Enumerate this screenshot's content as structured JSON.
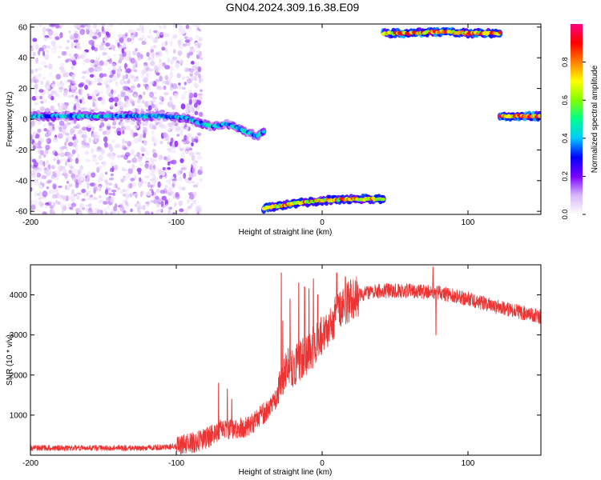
{
  "figure_title": "GN04.2024.309.16.38.E09",
  "chart_data": [
    {
      "type": "heatmap",
      "xlabel": "Height of straight line (km)",
      "ylabel": "Frequency (Hz)",
      "xlim": [
        -200,
        150
      ],
      "ylim": [
        -62,
        62
      ],
      "xticks": [
        -200,
        -100,
        0,
        100
      ],
      "yticks": [
        -60,
        -40,
        -20,
        0,
        20,
        40,
        60
      ],
      "colorbar": {
        "label": "Normalized spectral amplitude",
        "range": [
          0,
          1
        ],
        "ticks": [
          "0.0",
          "0.2",
          "0.4",
          "0.6",
          "0.8"
        ],
        "tick_values": [
          0,
          0.2,
          0.4,
          0.6,
          0.8
        ],
        "colors": [
          "#ffffff",
          "#d8b8f8",
          "#7a00ff",
          "#0000ff",
          "#00c8ff",
          "#00ff90",
          "#80ff00",
          "#ffff00",
          "#ff8000",
          "#ff0000",
          "#ff0080"
        ]
      },
      "features": [
        {
          "kind": "noise",
          "x_range": [
            -200,
            -95
          ],
          "y_range": [
            -62,
            62
          ],
          "amplitude": 0.15
        },
        {
          "kind": "band",
          "x": [
            -200,
            -150,
            -110,
            -95,
            -85,
            -75,
            -65,
            -55,
            -45,
            -40
          ],
          "y": [
            2,
            2,
            2,
            1,
            -2,
            -5,
            -3,
            -7,
            -11,
            -8
          ],
          "amplitude": 0.45
        },
        {
          "kind": "band",
          "x": [
            -40,
            -20,
            0,
            20,
            42
          ],
          "y": [
            -58,
            -55,
            -53,
            -52,
            -52
          ],
          "amplitude": 0.85
        },
        {
          "kind": "band",
          "x": [
            42,
            60,
            80,
            100,
            122
          ],
          "y": [
            56,
            56,
            57,
            56,
            56
          ],
          "amplitude": 0.9
        },
        {
          "kind": "band",
          "x": [
            122,
            150
          ],
          "y": [
            2,
            2
          ],
          "amplitude": 0.95
        }
      ]
    },
    {
      "type": "line",
      "xlabel": "Height of straight line (km)",
      "ylabel": "SNR (10 * v/v)",
      "xlim": [
        -200,
        150
      ],
      "ylim": [
        0,
        4750
      ],
      "xticks": [
        -200,
        -100,
        0,
        100
      ],
      "yticks": [
        1000,
        2000,
        3000,
        4000
      ],
      "color": "#ee3333",
      "envelope": {
        "x": [
          -200,
          -120,
          -100,
          -95,
          -85,
          -75,
          -70,
          -60,
          -50,
          -42,
          -38,
          -30,
          -25,
          -20,
          -10,
          0,
          10,
          20,
          30,
          40,
          60,
          80,
          100,
          120,
          150
        ],
        "y": [
          180,
          180,
          220,
          260,
          340,
          500,
          650,
          650,
          720,
          1000,
          1100,
          1500,
          2200,
          2200,
          2500,
          3000,
          3500,
          3900,
          4050,
          4100,
          4100,
          4050,
          3900,
          3700,
          3450
        ]
      },
      "spikes": [
        {
          "x": -71,
          "y": 1800
        },
        {
          "x": -65,
          "y": 1650
        },
        {
          "x": -62,
          "y": 1400
        },
        {
          "x": -28,
          "y": 4550
        },
        {
          "x": -27,
          "y": 3350
        },
        {
          "x": -22,
          "y": 3900
        },
        {
          "x": -16,
          "y": 4300
        },
        {
          "x": -12,
          "y": 4200
        },
        {
          "x": -9,
          "y": 4150
        },
        {
          "x": -6,
          "y": 4400
        },
        {
          "x": -3,
          "y": 4000
        },
        {
          "x": 10,
          "y": 4550
        },
        {
          "x": 16,
          "y": 4450
        },
        {
          "x": 76,
          "y": 4700
        },
        {
          "x": 78,
          "y": 3000
        }
      ]
    }
  ]
}
